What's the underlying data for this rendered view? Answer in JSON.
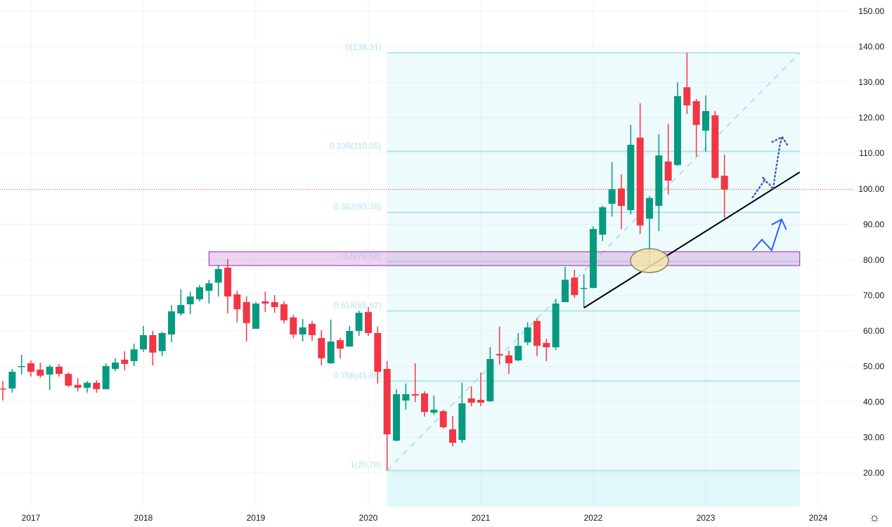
{
  "chart_data": {
    "type": "candlestick",
    "interval": "monthly",
    "colors": {
      "up": "#089981",
      "down": "#f23645",
      "fib": "#b2e3ea",
      "zone_fill": "#e1bee7",
      "zone_border": "#9c27b0",
      "price_line": "#f23645",
      "trendline": "#000000",
      "ellipse_fill": "#f5ecc4",
      "arrow": "#2962ff"
    },
    "y_axis": {
      "range": [
        10,
        152
      ],
      "ticks": [
        "150.00",
        "140.00",
        "130.00",
        "120.00",
        "110.00",
        "100.00",
        "90.00",
        "80.00",
        "70.00",
        "60.00",
        "50.00",
        "40.00",
        "30.00",
        "20.00"
      ],
      "position": "right",
      "grid": true
    },
    "x_axis": {
      "ticks": [
        {
          "date": "2017-01",
          "label": "2017"
        },
        {
          "date": "2018-01",
          "label": "2018"
        },
        {
          "date": "2019-01",
          "label": "2019"
        },
        {
          "date": "2020-01",
          "label": "2020"
        },
        {
          "date": "2021-01",
          "label": "2021"
        },
        {
          "date": "2022-01",
          "label": "2022"
        },
        {
          "date": "2023-01",
          "label": "2023"
        },
        {
          "date": "2024-01",
          "label": "2024"
        }
      ],
      "grid": true
    },
    "candles_columns": [
      "date",
      "open",
      "high",
      "low",
      "close"
    ],
    "candles": [
      [
        "2016-10",
        43.8,
        45.9,
        40.4,
        43.6
      ],
      [
        "2016-11",
        43.8,
        49.3,
        42.6,
        48.5
      ],
      [
        "2016-12",
        49.9,
        53.3,
        47.7,
        50.1
      ],
      [
        "2017-01",
        50.9,
        51.7,
        47.1,
        48.5
      ],
      [
        "2017-02",
        49.1,
        51.1,
        46.8,
        47.4
      ],
      [
        "2017-03",
        47.7,
        50.5,
        43.4,
        49.9
      ],
      [
        "2017-04",
        49.9,
        50.7,
        47.1,
        47.9
      ],
      [
        "2017-05",
        47.9,
        48.3,
        44.2,
        44.6
      ],
      [
        "2017-06",
        44.8,
        46.7,
        43.0,
        44.0
      ],
      [
        "2017-07",
        44.0,
        45.9,
        42.6,
        45.4
      ],
      [
        "2017-08",
        45.4,
        46.1,
        42.6,
        43.6
      ],
      [
        "2017-09",
        43.6,
        50.9,
        43.6,
        50.1
      ],
      [
        "2017-10",
        49.3,
        52.3,
        48.7,
        51.1
      ],
      [
        "2017-11",
        51.9,
        54.3,
        48.9,
        50.7
      ],
      [
        "2017-12",
        51.5,
        56.4,
        50.1,
        54.8
      ],
      [
        "2018-01",
        54.8,
        61.4,
        54.1,
        58.8
      ],
      [
        "2018-02",
        58.8,
        60.0,
        50.3,
        53.9
      ],
      [
        "2018-03",
        54.3,
        59.8,
        52.9,
        59.4
      ],
      [
        "2018-04",
        59.0,
        67.3,
        56.8,
        65.5
      ],
      [
        "2018-05",
        64.9,
        71.7,
        64.3,
        67.3
      ],
      [
        "2018-06",
        67.5,
        71.1,
        64.7,
        69.7
      ],
      [
        "2018-07",
        68.9,
        72.9,
        68.3,
        72.3
      ],
      [
        "2018-08",
        71.3,
        74.4,
        67.7,
        73.4
      ],
      [
        "2018-09",
        73.6,
        78.6,
        69.7,
        77.4
      ],
      [
        "2018-10",
        77.8,
        80.2,
        64.9,
        69.7
      ],
      [
        "2018-11",
        70.3,
        71.3,
        62.4,
        66.1
      ],
      [
        "2018-12",
        68.1,
        69.7,
        57.0,
        62.2
      ],
      [
        "2019-01",
        60.6,
        68.1,
        60.6,
        67.7
      ],
      [
        "2019-02",
        68.3,
        71.1,
        65.3,
        67.7
      ],
      [
        "2019-03",
        68.1,
        70.1,
        65.1,
        66.7
      ],
      [
        "2019-04",
        67.5,
        68.3,
        62.2,
        63.0
      ],
      [
        "2019-05",
        63.8,
        64.5,
        58.0,
        59.0
      ],
      [
        "2019-06",
        59.0,
        63.4,
        57.0,
        61.0
      ],
      [
        "2019-07",
        62.0,
        62.8,
        57.2,
        58.8
      ],
      [
        "2019-08",
        58.0,
        60.2,
        50.3,
        52.3
      ],
      [
        "2019-09",
        50.9,
        63.2,
        50.7,
        57.0
      ],
      [
        "2019-10",
        57.4,
        58.0,
        52.3,
        55.0
      ],
      [
        "2019-11",
        55.6,
        61.4,
        55.6,
        60.0
      ],
      [
        "2019-12",
        60.0,
        65.7,
        58.6,
        65.1
      ],
      [
        "2020-01",
        65.3,
        66.7,
        58.6,
        59.4
      ],
      [
        "2020-02",
        59.4,
        61.2,
        45.2,
        48.5
      ],
      [
        "2020-03",
        49.3,
        51.5,
        20.7,
        30.9
      ],
      [
        "2020-04",
        29.1,
        43.6,
        28.9,
        42.2
      ],
      [
        "2020-05",
        40.4,
        45.2,
        37.8,
        42.2
      ],
      [
        "2020-06",
        42.2,
        50.9,
        40.0,
        41.8
      ],
      [
        "2020-07",
        42.4,
        43.0,
        35.9,
        37.2
      ],
      [
        "2020-08",
        37.0,
        41.8,
        36.4,
        37.8
      ],
      [
        "2020-09",
        37.4,
        37.8,
        32.5,
        32.9
      ],
      [
        "2020-10",
        32.3,
        36.1,
        27.5,
        28.5
      ],
      [
        "2020-11",
        29.3,
        45.4,
        28.5,
        39.6
      ],
      [
        "2020-12",
        41.0,
        44.4,
        38.8,
        39.8
      ],
      [
        "2021-01",
        40.6,
        48.3,
        38.8,
        39.8
      ],
      [
        "2021-02",
        40.2,
        55.4,
        40.0,
        52.1
      ],
      [
        "2021-03",
        53.5,
        61.2,
        50.5,
        53.1
      ],
      [
        "2021-04",
        53.1,
        54.5,
        47.9,
        50.9
      ],
      [
        "2021-05",
        51.7,
        59.4,
        51.5,
        55.8
      ],
      [
        "2021-06",
        56.8,
        62.4,
        56.0,
        61.0
      ],
      [
        "2021-07",
        62.8,
        63.6,
        52.9,
        55.8
      ],
      [
        "2021-08",
        56.6,
        57.8,
        51.5,
        55.4
      ],
      [
        "2021-09",
        55.4,
        68.9,
        54.7,
        67.7
      ],
      [
        "2021-10",
        68.1,
        78.0,
        68.1,
        74.4
      ],
      [
        "2021-11",
        75.0,
        77.2,
        69.3,
        70.1
      ],
      [
        "2021-12",
        72.0,
        76.0,
        66.5,
        72.1
      ],
      [
        "2022-01",
        72.1,
        89.5,
        72.0,
        88.7
      ],
      [
        "2022-02",
        87.1,
        95.2,
        85.3,
        94.8
      ],
      [
        "2022-03",
        95.8,
        107.5,
        92.2,
        99.9
      ],
      [
        "2022-04",
        100.1,
        104.1,
        88.7,
        95.2
      ],
      [
        "2022-05",
        94.0,
        118.0,
        92.8,
        112.4
      ],
      [
        "2022-06",
        114.4,
        124.1,
        87.3,
        89.7
      ],
      [
        "2022-07",
        91.6,
        98.0,
        78.4,
        97.4
      ],
      [
        "2022-08",
        95.2,
        115.4,
        88.1,
        109.4
      ],
      [
        "2022-09",
        107.7,
        118.3,
        98.4,
        102.3
      ],
      [
        "2022-10",
        106.7,
        130.0,
        106.5,
        126.1
      ],
      [
        "2022-11",
        128.6,
        138.3,
        121.1,
        123.5
      ],
      [
        "2022-12",
        124.7,
        125.3,
        109.1,
        118.0
      ],
      [
        "2023-01",
        116.4,
        126.3,
        110.4,
        121.9
      ],
      [
        "2023-02",
        120.7,
        121.9,
        102.7,
        103.1
      ],
      [
        "2023-03",
        103.7,
        109.6,
        91.8,
        99.8
      ]
    ],
    "last_price_line": 99.8,
    "fibonacci": {
      "from": {
        "date": "2020-03",
        "price": 20.7
      },
      "to": {
        "date": "2023-11-02",
        "price": 138.31
      },
      "levels": [
        {
          "ratio": 0,
          "price": 138.31,
          "label": "0(138.31)"
        },
        {
          "ratio": 0.236,
          "price": 110.55,
          "label": "0.236(110.55)"
        },
        {
          "ratio": 0.382,
          "price": 93.38,
          "label": "0.382(93.38)"
        },
        {
          "ratio": 0.5,
          "price": 79.5,
          "label": "0.5(79.50)"
        },
        {
          "ratio": 0.618,
          "price": 65.62,
          "label": "0.618(65.62)"
        },
        {
          "ratio": 0.786,
          "price": 45.86,
          "label": "0.786(45.86)"
        },
        {
          "ratio": 1,
          "price": 20.7,
          "label": "1(20.70)"
        }
      ]
    },
    "zone": {
      "from": "2018-08",
      "to": "2023-11-02",
      "low": 78.4,
      "high": 82.3
    },
    "trendline": {
      "from": {
        "date": "2021-12",
        "price": 66.5
      },
      "to": {
        "date": "2023-11-02",
        "price": 104.7
      }
    },
    "ellipse": {
      "date": "2022-07",
      "price": 79.8
    },
    "arrow_solid": [
      [
        "2023-06-01",
        82.7
      ],
      [
        "2023-07-01",
        85.7
      ],
      [
        "2023-08-02",
        82.7
      ],
      [
        "2023-09-04",
        91.4
      ]
    ],
    "arrow_solid_head": [
      [
        "2023-08-02",
        89.9
      ],
      [
        "2023-09-04",
        91.4
      ],
      [
        "2023-09-19",
        88.5
      ]
    ],
    "arrow_dotted": [
      [
        "2023-06-01",
        97.6
      ],
      [
        "2023-07-10",
        102.5
      ],
      [
        "2023-07-03",
        103.3
      ],
      [
        "2023-07-14",
        102.1
      ],
      [
        "2023-07-25",
        101.3
      ],
      [
        "2023-08-07",
        99.8
      ],
      [
        "2023-08-11",
        102.7
      ],
      [
        "2023-08-20",
        107.7
      ],
      [
        "2023-08-29",
        112.6
      ],
      [
        "2023-09-06",
        114.6
      ]
    ],
    "arrow_dotted_head": [
      [
        "2023-08-04",
        113.2
      ],
      [
        "2023-09-06",
        114.6
      ],
      [
        "2023-09-22",
        112.4
      ]
    ]
  },
  "settings_icon": "gear-icon"
}
